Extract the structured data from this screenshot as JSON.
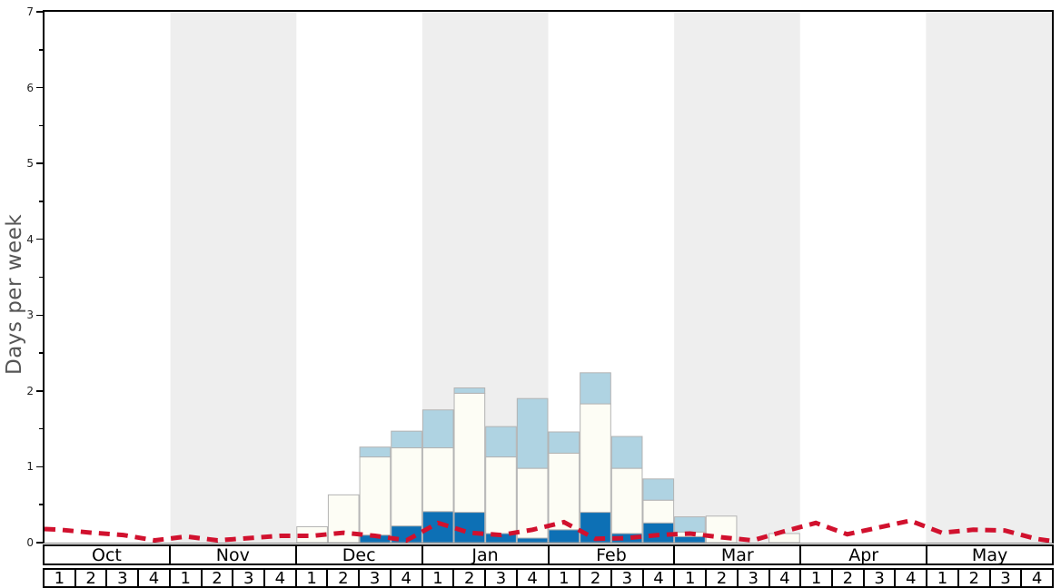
{
  "chart_data": {
    "type": "bar",
    "title": "",
    "ylabel": "Days per week",
    "ylim": [
      0,
      7
    ],
    "yticks": [
      0,
      1,
      2,
      3,
      4,
      5,
      6,
      7
    ],
    "ytick_minor_interval": 0.5,
    "grid": "off",
    "legend": "none",
    "x_structure": {
      "months": [
        "Oct",
        "Nov",
        "Dec",
        "Jan",
        "Feb",
        "Mar",
        "Apr",
        "May"
      ],
      "weeks_per_month": 4,
      "week_labels": [
        "1",
        "2",
        "3",
        "4"
      ],
      "shaded_month_indices": [
        1,
        3,
        5,
        7
      ]
    },
    "series": [
      {
        "name": "dark-blue-bar-segment",
        "kind": "stacked-bar",
        "color": "#0d70b5",
        "values": [
          0,
          0,
          0,
          0,
          0,
          0,
          0,
          0,
          0,
          0,
          0.1,
          0.22,
          0.41,
          0.4,
          0.12,
          0.06,
          0.17,
          0.4,
          0.12,
          0.26,
          0.08,
          0,
          0,
          0,
          0,
          0,
          0,
          0,
          0,
          0,
          0,
          0
        ]
      },
      {
        "name": "white-bar-segment",
        "kind": "stacked-bar",
        "color": "#fdfdf5",
        "values": [
          0,
          0,
          0,
          0,
          0,
          0,
          0,
          0,
          0.21,
          0.63,
          1.03,
          1.03,
          0.84,
          1.57,
          1.01,
          0.92,
          1.01,
          1.43,
          0.86,
          0.3,
          0.06,
          0.35,
          0,
          0.12,
          0,
          0,
          0,
          0,
          0,
          0,
          0,
          0
        ]
      },
      {
        "name": "light-blue-bar-segment",
        "kind": "stacked-bar",
        "color": "#afd3e2",
        "values": [
          0,
          0,
          0,
          0,
          0,
          0,
          0,
          0,
          0,
          0,
          0.13,
          0.22,
          0.5,
          0.07,
          0.4,
          0.92,
          0.28,
          0.41,
          0.42,
          0.28,
          0.2,
          0,
          0,
          0,
          0,
          0,
          0,
          0,
          0,
          0,
          0,
          0
        ]
      },
      {
        "name": "red-dashed-line",
        "kind": "line",
        "style": "dashed",
        "color": "#d1112e",
        "start_value": 0.18,
        "end_value": 0.02,
        "values": [
          0.17,
          0.13,
          0.1,
          0.03,
          0.08,
          0.03,
          0.06,
          0.09,
          0.09,
          0.13,
          0.09,
          0.03,
          0.26,
          0.13,
          0.1,
          0.17,
          0.27,
          0.05,
          0.06,
          0.1,
          0.12,
          0.07,
          0.03,
          0.15,
          0.26,
          0.11,
          0.2,
          0.29,
          0.13,
          0.17,
          0.16,
          0.05
        ]
      }
    ],
    "colors": {
      "shaded_band": "#eeeeee",
      "bar_border": "#b3b3b3",
      "axis": "#000000",
      "baseline": "#888888",
      "tick_label": "#222222",
      "ylabel_text": "#555555"
    }
  }
}
